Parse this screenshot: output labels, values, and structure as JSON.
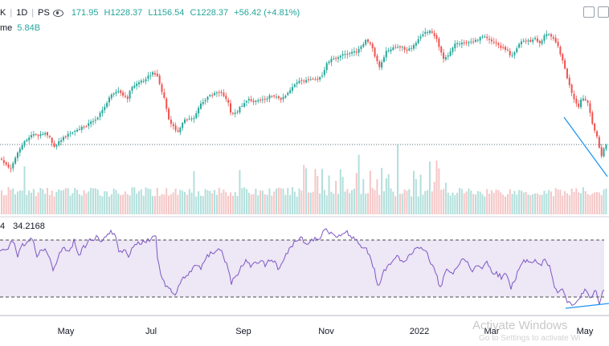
{
  "legend": {
    "symbol": "K",
    "interval": "1D",
    "exchange": "PS",
    "open": "171.95",
    "high": "H1228.37",
    "low": "L1156.54",
    "close": "C1228.37",
    "change": "+56.42 (+4.81%)"
  },
  "volume": {
    "label": "me",
    "value": "5.84B"
  },
  "rsi": {
    "label": "4",
    "value": "34.2168"
  },
  "watermark": {
    "line1": "Activate Windows",
    "line2": "Go to Settings to activate Wi"
  },
  "colors": {
    "up": "#26a69a",
    "down": "#ef5350",
    "vol_up": "#b2dfdb",
    "vol_down": "#f5c6c6",
    "rsi_line": "#7e57c2",
    "rsi_band": "#ede7f6",
    "trendline": "#2196f3"
  },
  "chart_data": {
    "type": "candlestick",
    "title": "",
    "x_ticks": [
      "May",
      "Jul",
      "Sep",
      "Nov",
      "2022",
      "Mar",
      "May"
    ],
    "close_path": [
      [
        0,
        198
      ],
      [
        7,
        204
      ],
      [
        13,
        212
      ],
      [
        17,
        200
      ],
      [
        22,
        190
      ],
      [
        28,
        180
      ],
      [
        35,
        172
      ],
      [
        42,
        166
      ],
      [
        48,
        170
      ],
      [
        55,
        164
      ],
      [
        62,
        170
      ],
      [
        66,
        184
      ],
      [
        70,
        180
      ],
      [
        76,
        174
      ],
      [
        84,
        168
      ],
      [
        92,
        164
      ],
      [
        100,
        160
      ],
      [
        108,
        156
      ],
      [
        116,
        150
      ],
      [
        122,
        146
      ],
      [
        128,
        136
      ],
      [
        134,
        126
      ],
      [
        140,
        116
      ],
      [
        146,
        112
      ],
      [
        152,
        118
      ],
      [
        158,
        124
      ],
      [
        163,
        110
      ],
      [
        170,
        104
      ],
      [
        178,
        100
      ],
      [
        186,
        94
      ],
      [
        192,
        90
      ],
      [
        196,
        95
      ],
      [
        200,
        110
      ],
      [
        205,
        124
      ],
      [
        210,
        150
      ],
      [
        215,
        156
      ],
      [
        220,
        166
      ],
      [
        224,
        158
      ],
      [
        230,
        150
      ],
      [
        236,
        148
      ],
      [
        242,
        146
      ],
      [
        248,
        132
      ],
      [
        254,
        126
      ],
      [
        260,
        120
      ],
      [
        266,
        116
      ],
      [
        272,
        114
      ],
      [
        278,
        118
      ],
      [
        284,
        128
      ],
      [
        288,
        144
      ],
      [
        294,
        140
      ],
      [
        300,
        132
      ],
      [
        308,
        124
      ],
      [
        316,
        126
      ],
      [
        324,
        124
      ],
      [
        332,
        122
      ],
      [
        340,
        118
      ],
      [
        348,
        124
      ],
      [
        356,
        118
      ],
      [
        364,
        108
      ],
      [
        372,
        102
      ],
      [
        380,
        100
      ],
      [
        388,
        100
      ],
      [
        396,
        98
      ],
      [
        402,
        94
      ],
      [
        408,
        76
      ],
      [
        414,
        74
      ],
      [
        420,
        72
      ],
      [
        428,
        68
      ],
      [
        436,
        66
      ],
      [
        444,
        64
      ],
      [
        450,
        58
      ],
      [
        456,
        50
      ],
      [
        462,
        56
      ],
      [
        466,
        68
      ],
      [
        472,
        84
      ],
      [
        476,
        74
      ],
      [
        482,
        62
      ],
      [
        490,
        60
      ],
      [
        498,
        58
      ],
      [
        506,
        62
      ],
      [
        512,
        60
      ],
      [
        518,
        54
      ],
      [
        524,
        44
      ],
      [
        530,
        40
      ],
      [
        536,
        38
      ],
      [
        542,
        46
      ],
      [
        548,
        62
      ],
      [
        552,
        72
      ],
      [
        558,
        68
      ],
      [
        566,
        54
      ],
      [
        572,
        54
      ],
      [
        578,
        52
      ],
      [
        584,
        54
      ],
      [
        590,
        50
      ],
      [
        596,
        48
      ],
      [
        602,
        46
      ],
      [
        608,
        50
      ],
      [
        614,
        52
      ],
      [
        620,
        56
      ],
      [
        626,
        60
      ],
      [
        632,
        62
      ],
      [
        636,
        70
      ],
      [
        642,
        62
      ],
      [
        648,
        52
      ],
      [
        654,
        50
      ],
      [
        660,
        52
      ],
      [
        666,
        48
      ],
      [
        672,
        54
      ],
      [
        678,
        44
      ],
      [
        684,
        42
      ],
      [
        690,
        48
      ],
      [
        696,
        62
      ],
      [
        700,
        74
      ],
      [
        704,
        90
      ],
      [
        708,
        104
      ],
      [
        712,
        118
      ],
      [
        716,
        128
      ],
      [
        720,
        134
      ],
      [
        724,
        122
      ],
      [
        728,
        124
      ],
      [
        732,
        130
      ],
      [
        736,
        148
      ],
      [
        740,
        162
      ],
      [
        744,
        174
      ],
      [
        748,
        196
      ],
      [
        752,
        184
      ],
      [
        756,
        180
      ]
    ],
    "rsi_path": [
      [
        0,
        310
      ],
      [
        8,
        312
      ],
      [
        16,
        300
      ],
      [
        22,
        318
      ],
      [
        28,
        306
      ],
      [
        34,
        300
      ],
      [
        40,
        296
      ],
      [
        46,
        320
      ],
      [
        50,
        312
      ],
      [
        56,
        310
      ],
      [
        62,
        322
      ],
      [
        66,
        336
      ],
      [
        72,
        322
      ],
      [
        78,
        308
      ],
      [
        86,
        316
      ],
      [
        92,
        300
      ],
      [
        98,
        318
      ],
      [
        104,
        308
      ],
      [
        112,
        300
      ],
      [
        120,
        296
      ],
      [
        126,
        302
      ],
      [
        132,
        296
      ],
      [
        138,
        286
      ],
      [
        144,
        296
      ],
      [
        148,
        316
      ],
      [
        154,
        310
      ],
      [
        160,
        318
      ],
      [
        166,
        306
      ],
      [
        172,
        304
      ],
      [
        178,
        302
      ],
      [
        184,
        300
      ],
      [
        188,
        298
      ],
      [
        194,
        296
      ],
      [
        196,
        320
      ],
      [
        200,
        340
      ],
      [
        206,
        356
      ],
      [
        212,
        362
      ],
      [
        218,
        370
      ],
      [
        222,
        356
      ],
      [
        228,
        346
      ],
      [
        234,
        340
      ],
      [
        240,
        336
      ],
      [
        246,
        328
      ],
      [
        250,
        334
      ],
      [
        256,
        320
      ],
      [
        262,
        316
      ],
      [
        268,
        312
      ],
      [
        274,
        310
      ],
      [
        278,
        318
      ],
      [
        282,
        330
      ],
      [
        288,
        352
      ],
      [
        294,
        344
      ],
      [
        300,
        334
      ],
      [
        306,
        326
      ],
      [
        312,
        330
      ],
      [
        318,
        328
      ],
      [
        324,
        324
      ],
      [
        330,
        330
      ],
      [
        336,
        324
      ],
      [
        342,
        328
      ],
      [
        348,
        336
      ],
      [
        354,
        322
      ],
      [
        360,
        312
      ],
      [
        366,
        302
      ],
      [
        372,
        296
      ],
      [
        376,
        298
      ],
      [
        382,
        304
      ],
      [
        386,
        300
      ],
      [
        392,
        296
      ],
      [
        398,
        298
      ],
      [
        402,
        286
      ],
      [
        408,
        288
      ],
      [
        414,
        292
      ],
      [
        420,
        294
      ],
      [
        426,
        290
      ],
      [
        432,
        288
      ],
      [
        438,
        296
      ],
      [
        444,
        300
      ],
      [
        450,
        306
      ],
      [
        456,
        310
      ],
      [
        460,
        318
      ],
      [
        466,
        336
      ],
      [
        470,
        358
      ],
      [
        476,
        342
      ],
      [
        482,
        332
      ],
      [
        488,
        324
      ],
      [
        494,
        318
      ],
      [
        500,
        326
      ],
      [
        506,
        322
      ],
      [
        512,
        316
      ],
      [
        518,
        310
      ],
      [
        524,
        308
      ],
      [
        530,
        312
      ],
      [
        536,
        326
      ],
      [
        542,
        340
      ],
      [
        548,
        358
      ],
      [
        552,
        346
      ],
      [
        558,
        334
      ],
      [
        564,
        342
      ],
      [
        570,
        330
      ],
      [
        576,
        322
      ],
      [
        582,
        326
      ],
      [
        588,
        340
      ],
      [
        594,
        328
      ],
      [
        600,
        334
      ],
      [
        606,
        326
      ],
      [
        612,
        338
      ],
      [
        618,
        340
      ],
      [
        624,
        346
      ],
      [
        630,
        340
      ],
      [
        636,
        358
      ],
      [
        642,
        346
      ],
      [
        648,
        330
      ],
      [
        654,
        324
      ],
      [
        660,
        328
      ],
      [
        666,
        326
      ],
      [
        672,
        330
      ],
      [
        678,
        324
      ],
      [
        684,
        330
      ],
      [
        688,
        350
      ],
      [
        694,
        366
      ],
      [
        700,
        362
      ],
      [
        706,
        376
      ],
      [
        712,
        380
      ],
      [
        718,
        374
      ],
      [
        724,
        368
      ],
      [
        730,
        360
      ],
      [
        734,
        372
      ],
      [
        738,
        368
      ],
      [
        742,
        362
      ],
      [
        746,
        378
      ],
      [
        750,
        364
      ],
      [
        756,
        360
      ]
    ],
    "support_level_close": 1228.37,
    "rsi_bands": [
      70,
      30
    ]
  }
}
